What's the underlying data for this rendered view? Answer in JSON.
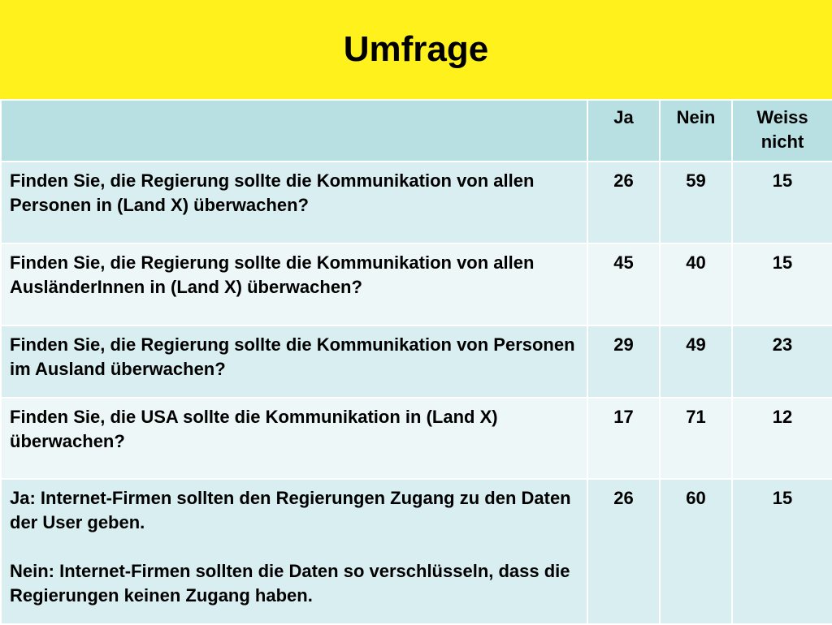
{
  "header": {
    "title": "Umfrage"
  },
  "table": {
    "columns": [
      "",
      "Ja",
      "Nein",
      "Weiss nicht"
    ],
    "rows": [
      {
        "question": "Finden Sie, die Regierung sollte die Kommunikation von allen Personen in (Land X) überwachen?",
        "ja": "26",
        "nein": "59",
        "weiss_nicht": "15"
      },
      {
        "question": "Finden Sie, die Regierung sollte die Kommunikation von allen AusländerInnen in (Land X) überwachen?",
        "ja": "45",
        "nein": "40",
        "weiss_nicht": "15"
      },
      {
        "question": "Finden Sie, die Regierung sollte die Kommunikation von Personen im Ausland überwachen?",
        "ja": "29",
        "nein": "49",
        "weiss_nicht": "23"
      },
      {
        "question": "Finden Sie, die USA sollte die Kommunikation in (Land X) überwachen?",
        "ja": "17",
        "nein": "71",
        "weiss_nicht": "12"
      },
      {
        "question_ja": "Ja: Internet-Firmen sollten den Regierungen Zugang zu den Daten der User geben.",
        "question_nein": "Nein: Internet-Firmen sollten die Daten so verschlüsseln, dass die Regierungen keinen Zugang haben.",
        "ja": "26",
        "nein": "60",
        "weiss_nicht": "15"
      }
    ]
  },
  "colors": {
    "title_background": "#fff21c",
    "header_row": "#b8e0e3",
    "row_odd": "#d8eef0",
    "row_even": "#eef7f8"
  }
}
